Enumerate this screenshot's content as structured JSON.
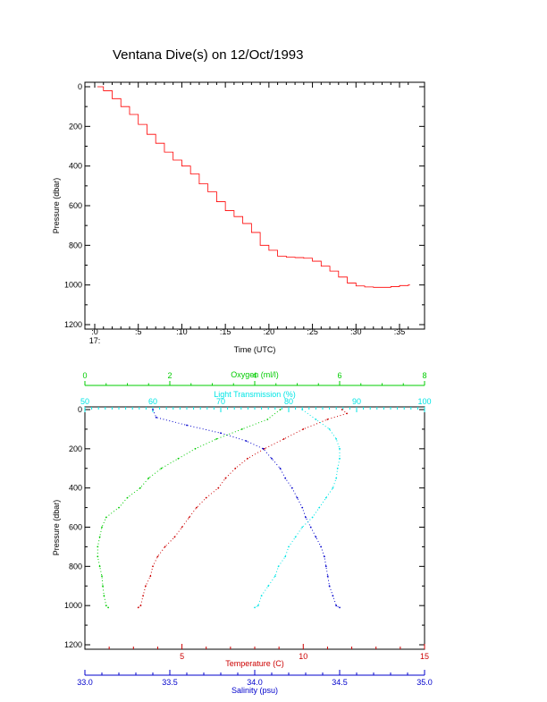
{
  "title": "Ventana Dive(s) on 12/Oct/1993",
  "colors": {
    "frame": "#000000",
    "pressure_trace": "#ff0000",
    "temperature": "#cc0000",
    "salinity": "#0000cc",
    "oxygen": "#00cc00",
    "light": "#00e5e5"
  },
  "chart_data": [
    {
      "type": "line",
      "title": "Ventana Dive(s) on 12/Oct/1993",
      "xlabel": "Time (UTC)",
      "ylabel": "Pressure (dbar)",
      "x_unit": "minutes past 17:00",
      "x_hour_label": "17:",
      "xlim": [
        -1,
        37
      ],
      "ylim": [
        1200,
        0
      ],
      "x_ticks": [
        {
          "value": 0,
          "label": ":0"
        },
        {
          "value": 5,
          "label": ":5"
        },
        {
          "value": 10,
          "label": ":10"
        },
        {
          "value": 15,
          "label": ":15"
        },
        {
          "value": 20,
          "label": ":20"
        },
        {
          "value": 25,
          "label": ":25"
        },
        {
          "value": 30,
          "label": ":30"
        },
        {
          "value": 35,
          "label": ":35"
        }
      ],
      "y_ticks": [
        0,
        200,
        400,
        600,
        800,
        1000,
        1200
      ],
      "grid": false,
      "series": [
        {
          "x": [
            0.3,
            1.0,
            2.0,
            3.0,
            4.0,
            5.0,
            6.0,
            7.0,
            8.0,
            9.0,
            10.0,
            11.0,
            12.0,
            13.0,
            14.0,
            15.0,
            16.0,
            17.0,
            18.0,
            19.0,
            20.0,
            21.0,
            22.0,
            23.0,
            24.0,
            25.0,
            26.0,
            27.0,
            28.0,
            29.0,
            30.0,
            31.0,
            32.0,
            33.0,
            34.0,
            35.0,
            36.0
          ],
          "y": [
            0,
            20,
            60,
            100,
            140,
            190,
            240,
            285,
            330,
            370,
            400,
            440,
            490,
            530,
            580,
            625,
            655,
            690,
            735,
            800,
            825,
            855,
            860,
            862,
            865,
            880,
            905,
            930,
            960,
            990,
            1005,
            1010,
            1012,
            1012,
            1008,
            1003,
            1000
          ]
        }
      ]
    },
    {
      "type": "scatter",
      "ylabel": "Pressure (dbar)",
      "ylim": [
        1200,
        0
      ],
      "y_ticks": [
        0,
        200,
        400,
        600,
        800,
        1000,
        1200
      ],
      "grid": false,
      "axes": {
        "oxygen": {
          "label": "Oxygen (ml/l)",
          "position": "top",
          "range": [
            0,
            8
          ],
          "ticks": [
            0,
            2,
            4,
            6,
            8
          ]
        },
        "light": {
          "label": "Light Transmission (%)",
          "position": "top",
          "range": [
            50,
            100
          ],
          "ticks": [
            50,
            60,
            70,
            80,
            90,
            100
          ]
        },
        "temperature": {
          "label": "Temperature (C)",
          "position": "bottom",
          "range": [
            1,
            15
          ],
          "ticks": [
            5,
            10,
            15
          ]
        },
        "salinity": {
          "label": "Salinity (psu)",
          "position": "bottom",
          "range": [
            33.0,
            35.0
          ],
          "ticks": [
            33.0,
            33.5,
            34.0,
            34.5,
            35.0
          ],
          "tick_labels": [
            "33.0",
            "33.5",
            "34.0",
            "34.5",
            "35.0"
          ]
        }
      },
      "series": [
        {
          "key": "temperature",
          "pressure": [
            0,
            20,
            50,
            100,
            150,
            200,
            250,
            300,
            350,
            400,
            450,
            500,
            550,
            600,
            650,
            700,
            750,
            800,
            850,
            900,
            950,
            1000,
            1010
          ],
          "values": [
            11.6,
            11.8,
            11.0,
            10.0,
            9.2,
            8.4,
            7.7,
            7.2,
            6.8,
            6.5,
            6.0,
            5.6,
            5.3,
            5.0,
            4.7,
            4.3,
            4.0,
            3.8,
            3.7,
            3.5,
            3.4,
            3.3,
            3.2
          ]
        },
        {
          "key": "salinity",
          "pressure": [
            0,
            40,
            80,
            120,
            160,
            200,
            250,
            300,
            350,
            400,
            450,
            500,
            550,
            600,
            650,
            700,
            750,
            800,
            850,
            900,
            950,
            1000,
            1010
          ],
          "values": [
            33.4,
            33.42,
            33.6,
            33.8,
            33.95,
            34.05,
            34.1,
            34.15,
            34.18,
            34.22,
            34.25,
            34.28,
            34.3,
            34.33,
            34.36,
            34.39,
            34.41,
            34.42,
            34.43,
            34.44,
            34.46,
            34.48,
            34.5
          ]
        },
        {
          "key": "oxygen",
          "pressure": [
            0,
            50,
            100,
            150,
            200,
            250,
            300,
            350,
            400,
            450,
            500,
            550,
            600,
            650,
            700,
            750,
            800,
            850,
            900,
            950,
            1000,
            1010
          ],
          "values": [
            4.6,
            4.3,
            3.7,
            3.1,
            2.6,
            2.2,
            1.8,
            1.5,
            1.3,
            1.0,
            0.8,
            0.5,
            0.4,
            0.35,
            0.3,
            0.3,
            0.35,
            0.4,
            0.42,
            0.45,
            0.5,
            0.55
          ]
        },
        {
          "key": "light",
          "pressure": [
            0,
            50,
            100,
            150,
            200,
            250,
            300,
            350,
            400,
            450,
            500,
            550,
            600,
            650,
            700,
            750,
            800,
            850,
            900,
            950,
            1000,
            1010
          ],
          "values": [
            82,
            84,
            86,
            87,
            87.5,
            87.5,
            87.2,
            87,
            86.5,
            85.5,
            84.5,
            83.5,
            82,
            81,
            80,
            79.5,
            78.5,
            78,
            77,
            76,
            75.5,
            75
          ]
        }
      ]
    }
  ]
}
